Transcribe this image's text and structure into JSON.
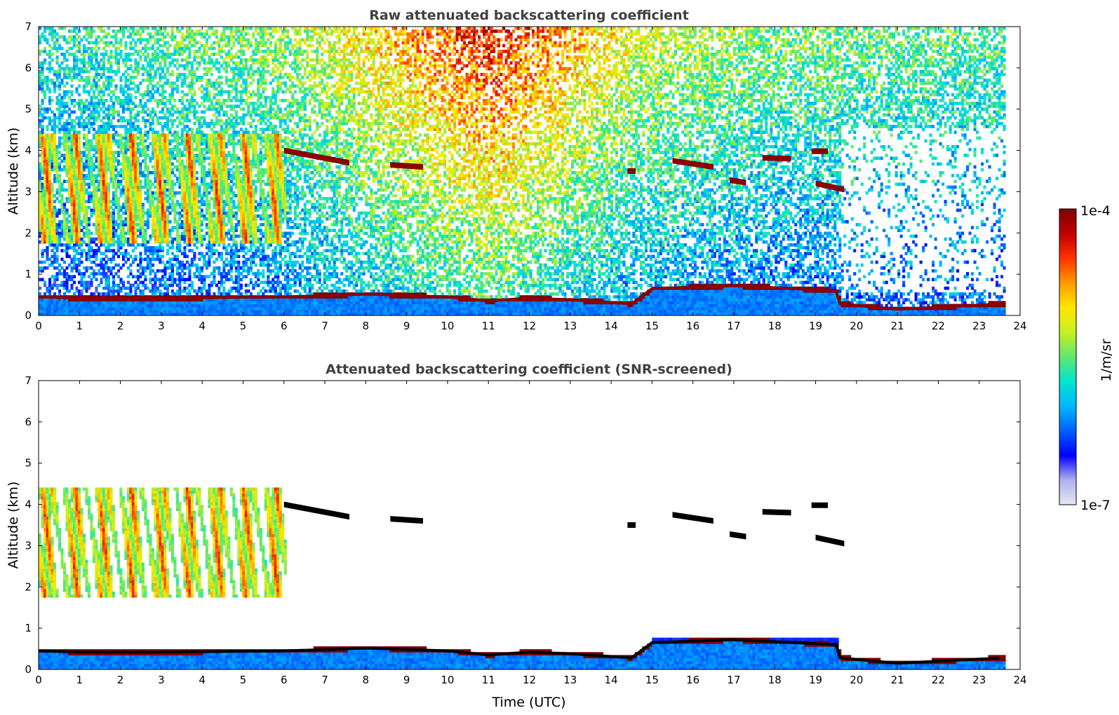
{
  "chart_data": [
    {
      "type": "heatmap",
      "title": "Raw attenuated backscattering coefficient",
      "xlabel": "",
      "ylabel": "Altitude (km)",
      "xlim": [
        0,
        24
      ],
      "ylim": [
        0,
        7
      ],
      "xticks": [
        0,
        1,
        2,
        3,
        4,
        5,
        6,
        7,
        8,
        9,
        10,
        11,
        12,
        13,
        14,
        15,
        16,
        17,
        18,
        19,
        20,
        21,
        22,
        23,
        24
      ],
      "yticks": [
        0,
        1,
        2,
        3,
        4,
        5,
        6,
        7
      ],
      "data_end_time": 23.6,
      "background_noise_gradient": [
        {
          "time": 0,
          "level": 0.42
        },
        {
          "time": 6,
          "level": 0.55
        },
        {
          "time": 11,
          "level": 0.88
        },
        {
          "time": 14.5,
          "level": 0.62
        },
        {
          "time": 18,
          "level": 0.52
        },
        {
          "time": 23.6,
          "level": 0.48
        }
      ],
      "boundary_layer": [
        {
          "time": 0,
          "top_km": 0.45
        },
        {
          "time": 1,
          "top_km": 0.42
        },
        {
          "time": 3,
          "top_km": 0.42
        },
        {
          "time": 6,
          "top_km": 0.45
        },
        {
          "time": 7,
          "top_km": 0.48
        },
        {
          "time": 8,
          "top_km": 0.52
        },
        {
          "time": 10,
          "top_km": 0.45
        },
        {
          "time": 11,
          "top_km": 0.35
        },
        {
          "time": 12,
          "top_km": 0.42
        },
        {
          "time": 13,
          "top_km": 0.38
        },
        {
          "time": 14.5,
          "top_km": 0.28
        },
        {
          "time": 15,
          "top_km": 0.65
        },
        {
          "time": 17,
          "top_km": 0.72
        },
        {
          "time": 19.5,
          "top_km": 0.6
        },
        {
          "time": 19.6,
          "top_km": 0.28
        },
        {
          "time": 21,
          "top_km": 0.15
        },
        {
          "time": 22,
          "top_km": 0.2
        },
        {
          "time": 23.6,
          "top_km": 0.28
        }
      ],
      "cloud_layers": [
        {
          "t_start": 6.0,
          "t_end": 7.6,
          "alt_start_km": 4.0,
          "alt_end_km": 3.7,
          "intensity": "high"
        },
        {
          "t_start": 8.6,
          "t_end": 9.4,
          "alt_start_km": 3.65,
          "alt_end_km": 3.6,
          "intensity": "high"
        },
        {
          "t_start": 14.4,
          "t_end": 14.6,
          "alt_start_km": 3.5,
          "alt_end_km": 3.5,
          "intensity": "high"
        },
        {
          "t_start": 15.5,
          "t_end": 16.5,
          "alt_start_km": 3.75,
          "alt_end_km": 3.6,
          "intensity": "high"
        },
        {
          "t_start": 16.9,
          "t_end": 17.3,
          "alt_start_km": 3.28,
          "alt_end_km": 3.22,
          "intensity": "high"
        },
        {
          "t_start": 17.7,
          "t_end": 18.4,
          "alt_start_km": 3.82,
          "alt_end_km": 3.8,
          "intensity": "high"
        },
        {
          "t_start": 18.9,
          "t_end": 19.3,
          "alt_start_km": 3.98,
          "alt_end_km": 3.98,
          "intensity": "high"
        },
        {
          "t_start": 19.0,
          "t_end": 19.7,
          "alt_start_km": 3.2,
          "alt_end_km": 3.05,
          "intensity": "high"
        }
      ],
      "virga_region": {
        "t_start": 0,
        "t_end": 6.0,
        "alt_min_km": 1.7,
        "alt_max_km": 4.4
      },
      "signal_dropout": {
        "t_start": 19.6,
        "t_end": 23.6,
        "alt_min_km": 0.5,
        "alt_max_km": 4.5
      }
    },
    {
      "type": "heatmap",
      "title": "Attenuated backscattering coefficient (SNR-screened)",
      "xlabel": "Time (UTC)",
      "ylabel": "Altitude (km)",
      "xlim": [
        0,
        24
      ],
      "ylim": [
        0,
        7
      ],
      "xticks": [
        0,
        1,
        2,
        3,
        4,
        5,
        6,
        7,
        8,
        9,
        10,
        11,
        12,
        13,
        14,
        15,
        16,
        17,
        18,
        19,
        20,
        21,
        22,
        23,
        24
      ],
      "yticks": [
        0,
        1,
        2,
        3,
        4,
        5,
        6,
        7
      ],
      "screened_fill": "#ffffff",
      "saturated_fill": "#000000"
    }
  ],
  "colorbar": {
    "label": "1/m/sr",
    "max_label": "1e-4",
    "min_label": "1e-7",
    "scale": "log",
    "range": [
      1e-07,
      0.0001
    ],
    "colormap": [
      "#e6e6f5",
      "#b0b0ee",
      "#0000ff",
      "#0060ff",
      "#00b8ff",
      "#00e6cc",
      "#60e870",
      "#c8f020",
      "#ffe600",
      "#ff9a00",
      "#ff3000",
      "#c00000",
      "#800000"
    ]
  }
}
